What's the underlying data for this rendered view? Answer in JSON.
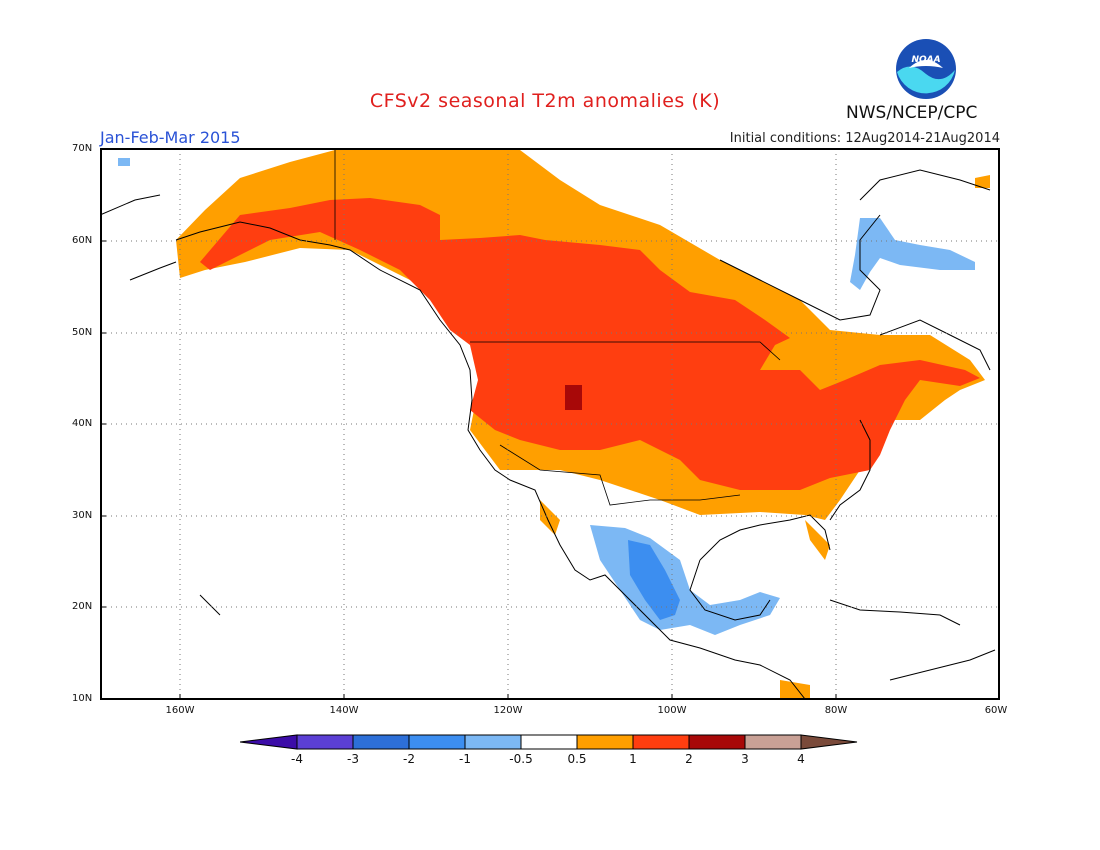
{
  "title": "CFSv2 seasonal T2m anomalies (K)",
  "period": "Jan-Feb-Mar 2015",
  "initial_conditions": "Initial conditions: 12Aug2014-21Aug2014",
  "agency": "NWS/NCEP/CPC",
  "logo_text": "NOAA",
  "latitude_labels": [
    "70N",
    "60N",
    "50N",
    "40N",
    "30N",
    "20N",
    "10N"
  ],
  "longitude_labels": [
    "160W",
    "140W",
    "120W",
    "100W",
    "80W",
    "60W"
  ],
  "colorbar": {
    "ticks": [
      "-4",
      "-3",
      "-2",
      "-1",
      "-0.5",
      "0.5",
      "1",
      "2",
      "3",
      "4"
    ],
    "colors": [
      "#3c0ca8",
      "#5b3fd4",
      "#2d6fd8",
      "#3c8ef0",
      "#7cb8f4",
      "#ffffff",
      "#ff9f00",
      "#ff3e10",
      "#a80808",
      "#c9a196",
      "#7a4a3a"
    ]
  },
  "anomaly_regions": [
    {
      "label": "0.5 to 1 K",
      "color": "#ff9f00",
      "area": "northern Canada, Alaska coast, southern US, Mexico Gulf coast"
    },
    {
      "label": "1 to 2 K",
      "color": "#ff3e10",
      "area": "western Canada, northern and central US"
    },
    {
      "label": "2 to 3 K",
      "color": "#a80808",
      "area": "Utah / Wyoming"
    },
    {
      "label": "-1 to -0.5 K",
      "color": "#7cb8f4",
      "area": "northern Mexico, Hudson Bay, Quebec"
    },
    {
      "label": "-2 to -1 K",
      "color": "#3c8ef0",
      "area": "central Mexico"
    }
  ]
}
